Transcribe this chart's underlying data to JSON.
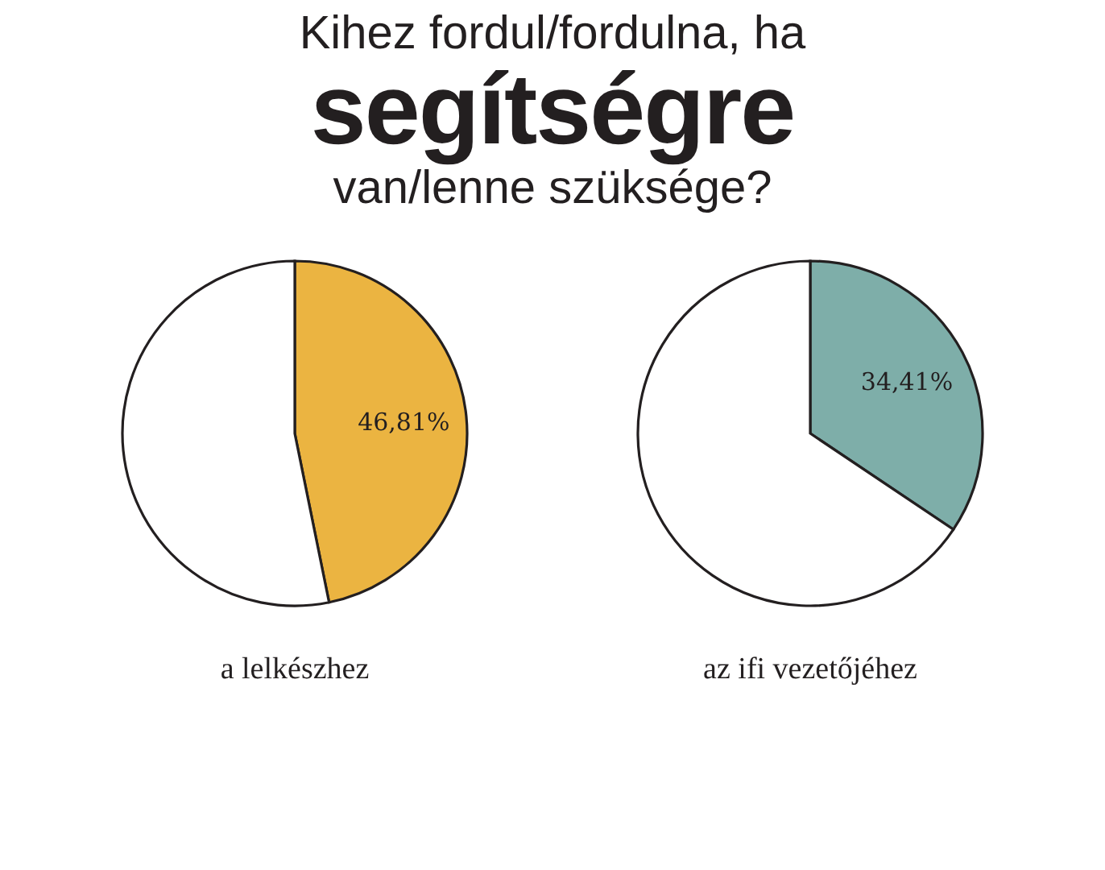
{
  "chart_data": [
    {
      "type": "other",
      "annotations": [
        "Kihez fordul/fordulna, ha",
        "segítségre",
        "van/lenne szüksége?"
      ]
    },
    {
      "type": "pie",
      "xlabel": "a lelkészhez",
      "categories": [
        null,
        null
      ],
      "values": [
        46.81,
        53.19
      ],
      "colors": [
        "#ebb441",
        "#ffffff"
      ],
      "value_labels": [
        "46,81%",
        null
      ]
    },
    {
      "type": "pie",
      "xlabel": "az ifi vezetőjéhez",
      "categories": [
        null,
        null
      ],
      "values": [
        34.41,
        65.59
      ],
      "colors": [
        "#7eaea9",
        "#ffffff"
      ],
      "value_labels": [
        "34,41%",
        null
      ]
    }
  ]
}
